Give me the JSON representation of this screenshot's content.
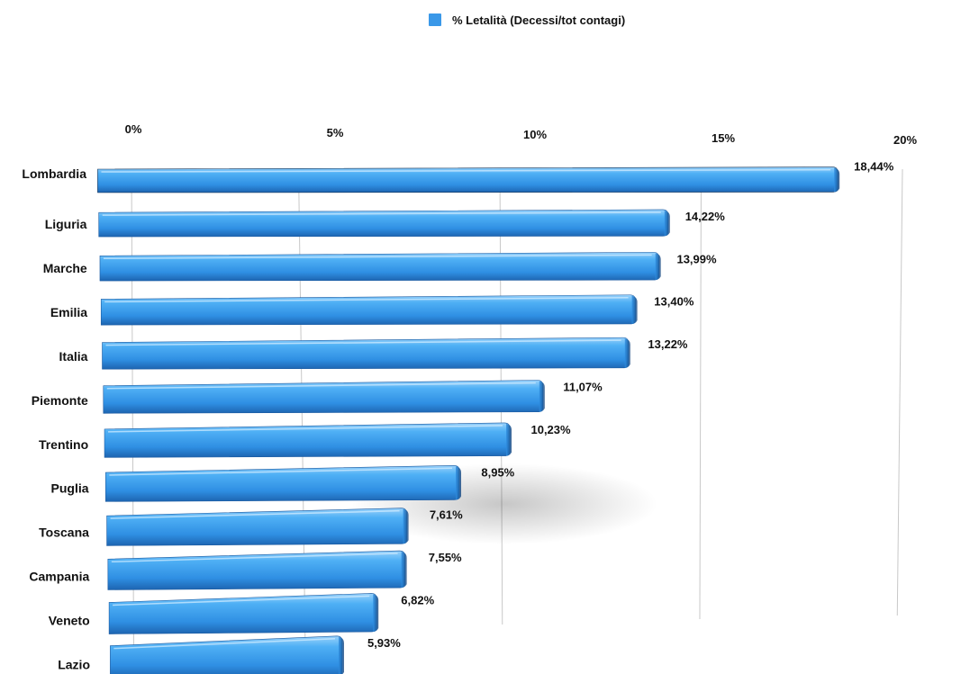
{
  "chart_data": {
    "type": "bar",
    "orientation": "horizontal",
    "categories": [
      "Lombardia",
      "Liguria",
      "Marche",
      "Emilia",
      "Italia",
      "Piemonte",
      "Trentino",
      "Puglia",
      "Toscana",
      "Campania",
      "Veneto",
      "Lazio"
    ],
    "series": [
      {
        "name": "% Letalità (Decessi/tot contagi)",
        "values": [
          18.44,
          14.22,
          13.99,
          13.4,
          13.22,
          11.07,
          10.23,
          8.95,
          7.61,
          7.55,
          6.82,
          5.93
        ],
        "data_labels": [
          "18,44%",
          "14,22%",
          "13,99%",
          "13,40%",
          "13,22%",
          "11,07%",
          "10,23%",
          "8,95%",
          "7,61%",
          "7,55%",
          "6,82%",
          "5,93%"
        ]
      }
    ],
    "x_ticks": [
      0,
      5,
      10,
      15,
      20
    ],
    "x_tick_labels": [
      "0%",
      "5%",
      "10%",
      "15%",
      "20%"
    ],
    "xlim": [
      0,
      20
    ],
    "grid": true,
    "legend_position": "top-center",
    "bar_color": "#3a98e8"
  }
}
